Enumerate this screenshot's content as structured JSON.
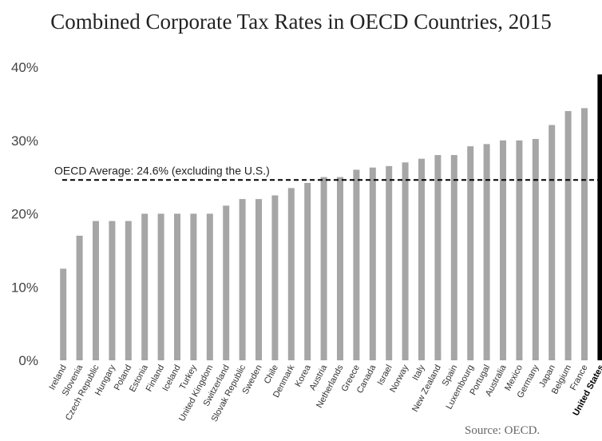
{
  "chart_data": {
    "type": "bar",
    "title": "Combined Corporate Tax Rates in OECD Countries, 2015",
    "source": "Source: OECD.",
    "ylim": [
      0,
      40
    ],
    "yticks": [
      "0%",
      "10%",
      "20%",
      "30%",
      "40%"
    ],
    "average": {
      "value": 24.6,
      "label": "OECD Average: 24.6% (excluding the U.S.)"
    },
    "highlight": "United States",
    "colors": {
      "bar": "#a6a6a6",
      "highlight_bar": "#000000",
      "average_line": "#000000"
    },
    "categories": [
      "Ireland",
      "Slovenia",
      "Czech Republic",
      "Hungary",
      "Poland",
      "Estonia",
      "Finland",
      "Iceland",
      "Turkey",
      "United Kingdom",
      "Switzerland",
      "Slovak Republic",
      "Sweden",
      "Chile",
      "Denmark",
      "Korea",
      "Austria",
      "Netherlands",
      "Greece",
      "Canada",
      "Israel",
      "Norway",
      "Italy",
      "New Zealand",
      "Spain",
      "Luxembourg",
      "Portugal",
      "Australia",
      "Mexico",
      "Germany",
      "Japan",
      "Belgium",
      "France",
      "United States"
    ],
    "values": [
      12.5,
      17,
      19,
      19,
      19,
      20,
      20,
      20,
      20,
      20,
      21.1,
      22,
      22,
      22.5,
      23.5,
      24.2,
      25,
      25,
      26,
      26.3,
      26.5,
      27,
      27.5,
      28,
      28,
      29.2,
      29.5,
      30,
      30,
      30.2,
      32.1,
      34,
      34.4,
      39
    ]
  }
}
